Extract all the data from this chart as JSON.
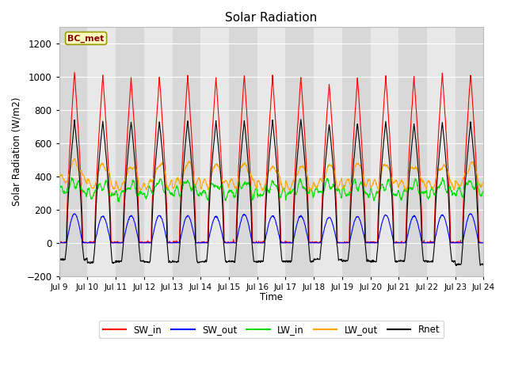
{
  "title": "Solar Radiation",
  "ylabel": "Solar Radiation (W/m2)",
  "xlabel": "Time",
  "ylim": [
    -200,
    1300
  ],
  "xlim": [
    0,
    360
  ],
  "yticks": [
    -200,
    0,
    200,
    400,
    600,
    800,
    1000,
    1200
  ],
  "xtick_labels": [
    "Jul 9",
    "Jul 10",
    "Jul 11",
    "Jul 12",
    "Jul 13",
    "Jul 14",
    "Jul 15",
    "Jul 16",
    "Jul 17",
    "Jul 18",
    "Jul 19",
    "Jul 20",
    "Jul 21",
    "Jul 22",
    "Jul 23",
    "Jul 24"
  ],
  "xtick_positions": [
    0,
    24,
    48,
    72,
    96,
    120,
    144,
    168,
    192,
    216,
    240,
    264,
    288,
    312,
    336,
    360
  ],
  "colors": {
    "SW_in": "#ff0000",
    "SW_out": "#0000ff",
    "LW_in": "#00dd00",
    "LW_out": "#ffa500",
    "Rnet": "#000000"
  },
  "annotation_text": "BC_met",
  "fig_bg": "#ffffff",
  "plot_bg": "#e8e8e8",
  "grid_color": "#ffffff",
  "n_days": 15,
  "hours_per_day": 24,
  "SW_in_peaks": [
    1030,
    1010,
    985,
    1000,
    1005,
    995,
    1010,
    1000,
    1000,
    960,
    990,
    1005,
    1000,
    1020,
    1020
  ],
  "SW_out_peaks": [
    175,
    160,
    162,
    165,
    162,
    158,
    172,
    162,
    162,
    152,
    158,
    168,
    162,
    168,
    175
  ],
  "LW_in_base": [
    310,
    295,
    290,
    300,
    305,
    295,
    305,
    295,
    295,
    305,
    300,
    295,
    295,
    300,
    305
  ],
  "LW_in_day_bump": [
    55,
    55,
    55,
    60,
    55,
    55,
    55,
    55,
    55,
    50,
    55,
    55,
    55,
    55,
    55
  ],
  "LW_out_base": [
    380,
    350,
    345,
    355,
    360,
    348,
    355,
    348,
    348,
    358,
    353,
    348,
    348,
    355,
    362
  ],
  "LW_out_day_bump": [
    110,
    125,
    120,
    120,
    115,
    115,
    120,
    115,
    115,
    105,
    115,
    120,
    115,
    115,
    115
  ],
  "Rnet_peaks": [
    735,
    730,
    730,
    730,
    735,
    730,
    735,
    740,
    745,
    715,
    720,
    730,
    720,
    725,
    725
  ],
  "Rnet_night": [
    -100,
    -120,
    -110,
    -115,
    -115,
    -112,
    -112,
    -112,
    -112,
    -100,
    -108,
    -112,
    -108,
    -112,
    -130
  ]
}
